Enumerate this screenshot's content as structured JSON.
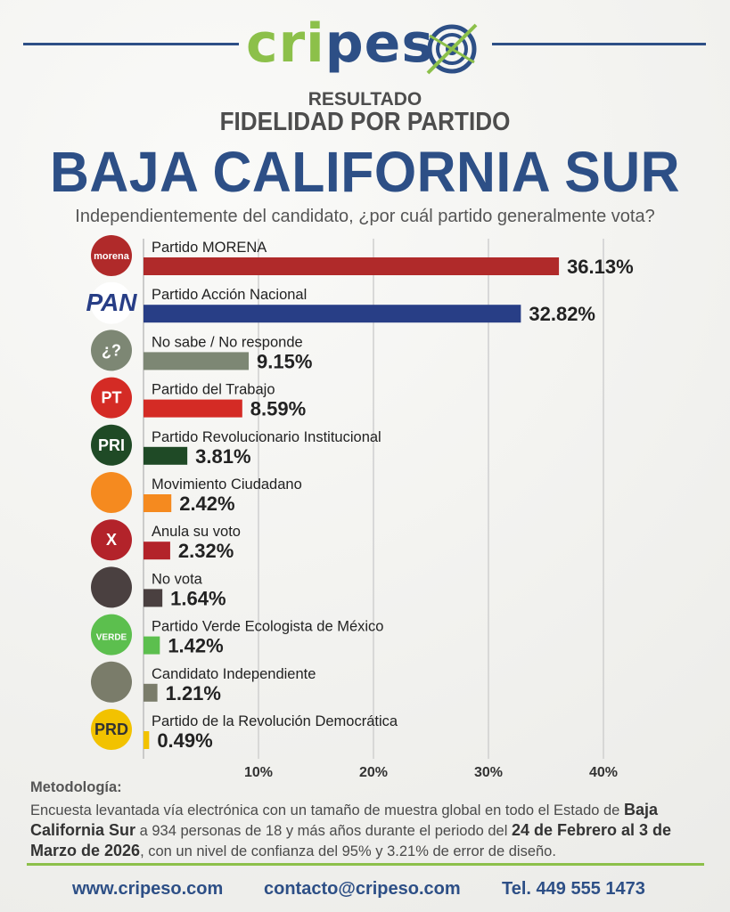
{
  "brand": {
    "part1": "cri",
    "part2": "pes",
    "logo_icon": "target-crosshair-icon"
  },
  "header": {
    "pre_title_1": "RESULTADO",
    "pre_title_2": "FIDELIDAD POR PARTIDO",
    "title": "BAJA CALIFORNIA SUR",
    "question": "Independientemente del candidato, ¿por cuál partido generalmente vota?"
  },
  "colors": {
    "brand_blue": "#2d4f86",
    "brand_green": "#8cc04a"
  },
  "chart_data": {
    "type": "bar",
    "orientation": "horizontal",
    "categories": [
      "Partido MORENA",
      "Partido Acción Nacional",
      "No sabe / No responde",
      "Partido del Trabajo",
      "Partido Revolucionario Institucional",
      "Movimiento Ciudadano",
      "Anula su voto",
      "No vota",
      "Partido Verde Ecologista de México",
      "Candidato Independiente",
      "Partido de la Revolución Democrática"
    ],
    "values": [
      36.13,
      32.82,
      9.15,
      8.59,
      3.81,
      2.42,
      2.32,
      1.64,
      1.42,
      1.21,
      0.49
    ],
    "value_labels": [
      "36.13%",
      "32.82%",
      "9.15%",
      "8.59%",
      "3.81%",
      "2.42%",
      "2.32%",
      "1.64%",
      "1.42%",
      "1.21%",
      "0.49%"
    ],
    "bar_colors": [
      "#b02a2a",
      "#283e86",
      "#7d8774",
      "#d42b25",
      "#1f4a26",
      "#f58a1f",
      "#b3232a",
      "#4a4040",
      "#5cbf4e",
      "#7a7c6a",
      "#f2c200"
    ],
    "icons": [
      {
        "name": "morena-logo-icon",
        "text": "morena",
        "color": "#b02a2a"
      },
      {
        "name": "pan-logo-icon",
        "text": "PAN",
        "color": "#283e86"
      },
      {
        "name": "question-icon",
        "text": "¿?",
        "color": "#7d8774"
      },
      {
        "name": "pt-logo-icon",
        "text": "PT",
        "color": "#d42b25"
      },
      {
        "name": "pri-logo-icon",
        "text": "PRI",
        "color": "#1f4a26"
      },
      {
        "name": "mc-logo-icon",
        "text": "",
        "color": "#f58a1f"
      },
      {
        "name": "cancel-x-icon",
        "text": "X",
        "color": "#b3232a"
      },
      {
        "name": "ballot-box-icon",
        "text": "",
        "color": "#4a4040"
      },
      {
        "name": "verde-logo-icon",
        "text": "VERDE",
        "color": "#5cbf4e"
      },
      {
        "name": "person-icon",
        "text": "",
        "color": "#7a7c6a"
      },
      {
        "name": "prd-logo-icon",
        "text": "PRD",
        "color": "#f2c200"
      }
    ],
    "xticks": [
      10,
      20,
      30,
      40
    ],
    "xtick_labels": [
      "10%",
      "20%",
      "30%",
      "40%"
    ],
    "xlim": [
      0,
      50
    ],
    "grid": true
  },
  "methodology": {
    "heading": "Metodología:",
    "t1": "Encuesta levantada vía electrónica con un tamaño de muestra global en todo el Estado de ",
    "b1": "Baja California Sur",
    "t2": " a 934 personas de 18 y más años durante el periodo del ",
    "b2": "24 de Febrero al 3 de Marzo de 2026",
    "t3": ", con un nivel de confianza del 95% y 3.21% de error de diseño."
  },
  "footer": {
    "website": "www.cripeso.com",
    "email": "contacto@cripeso.com",
    "phone": "Tel. 449 555 1473"
  }
}
